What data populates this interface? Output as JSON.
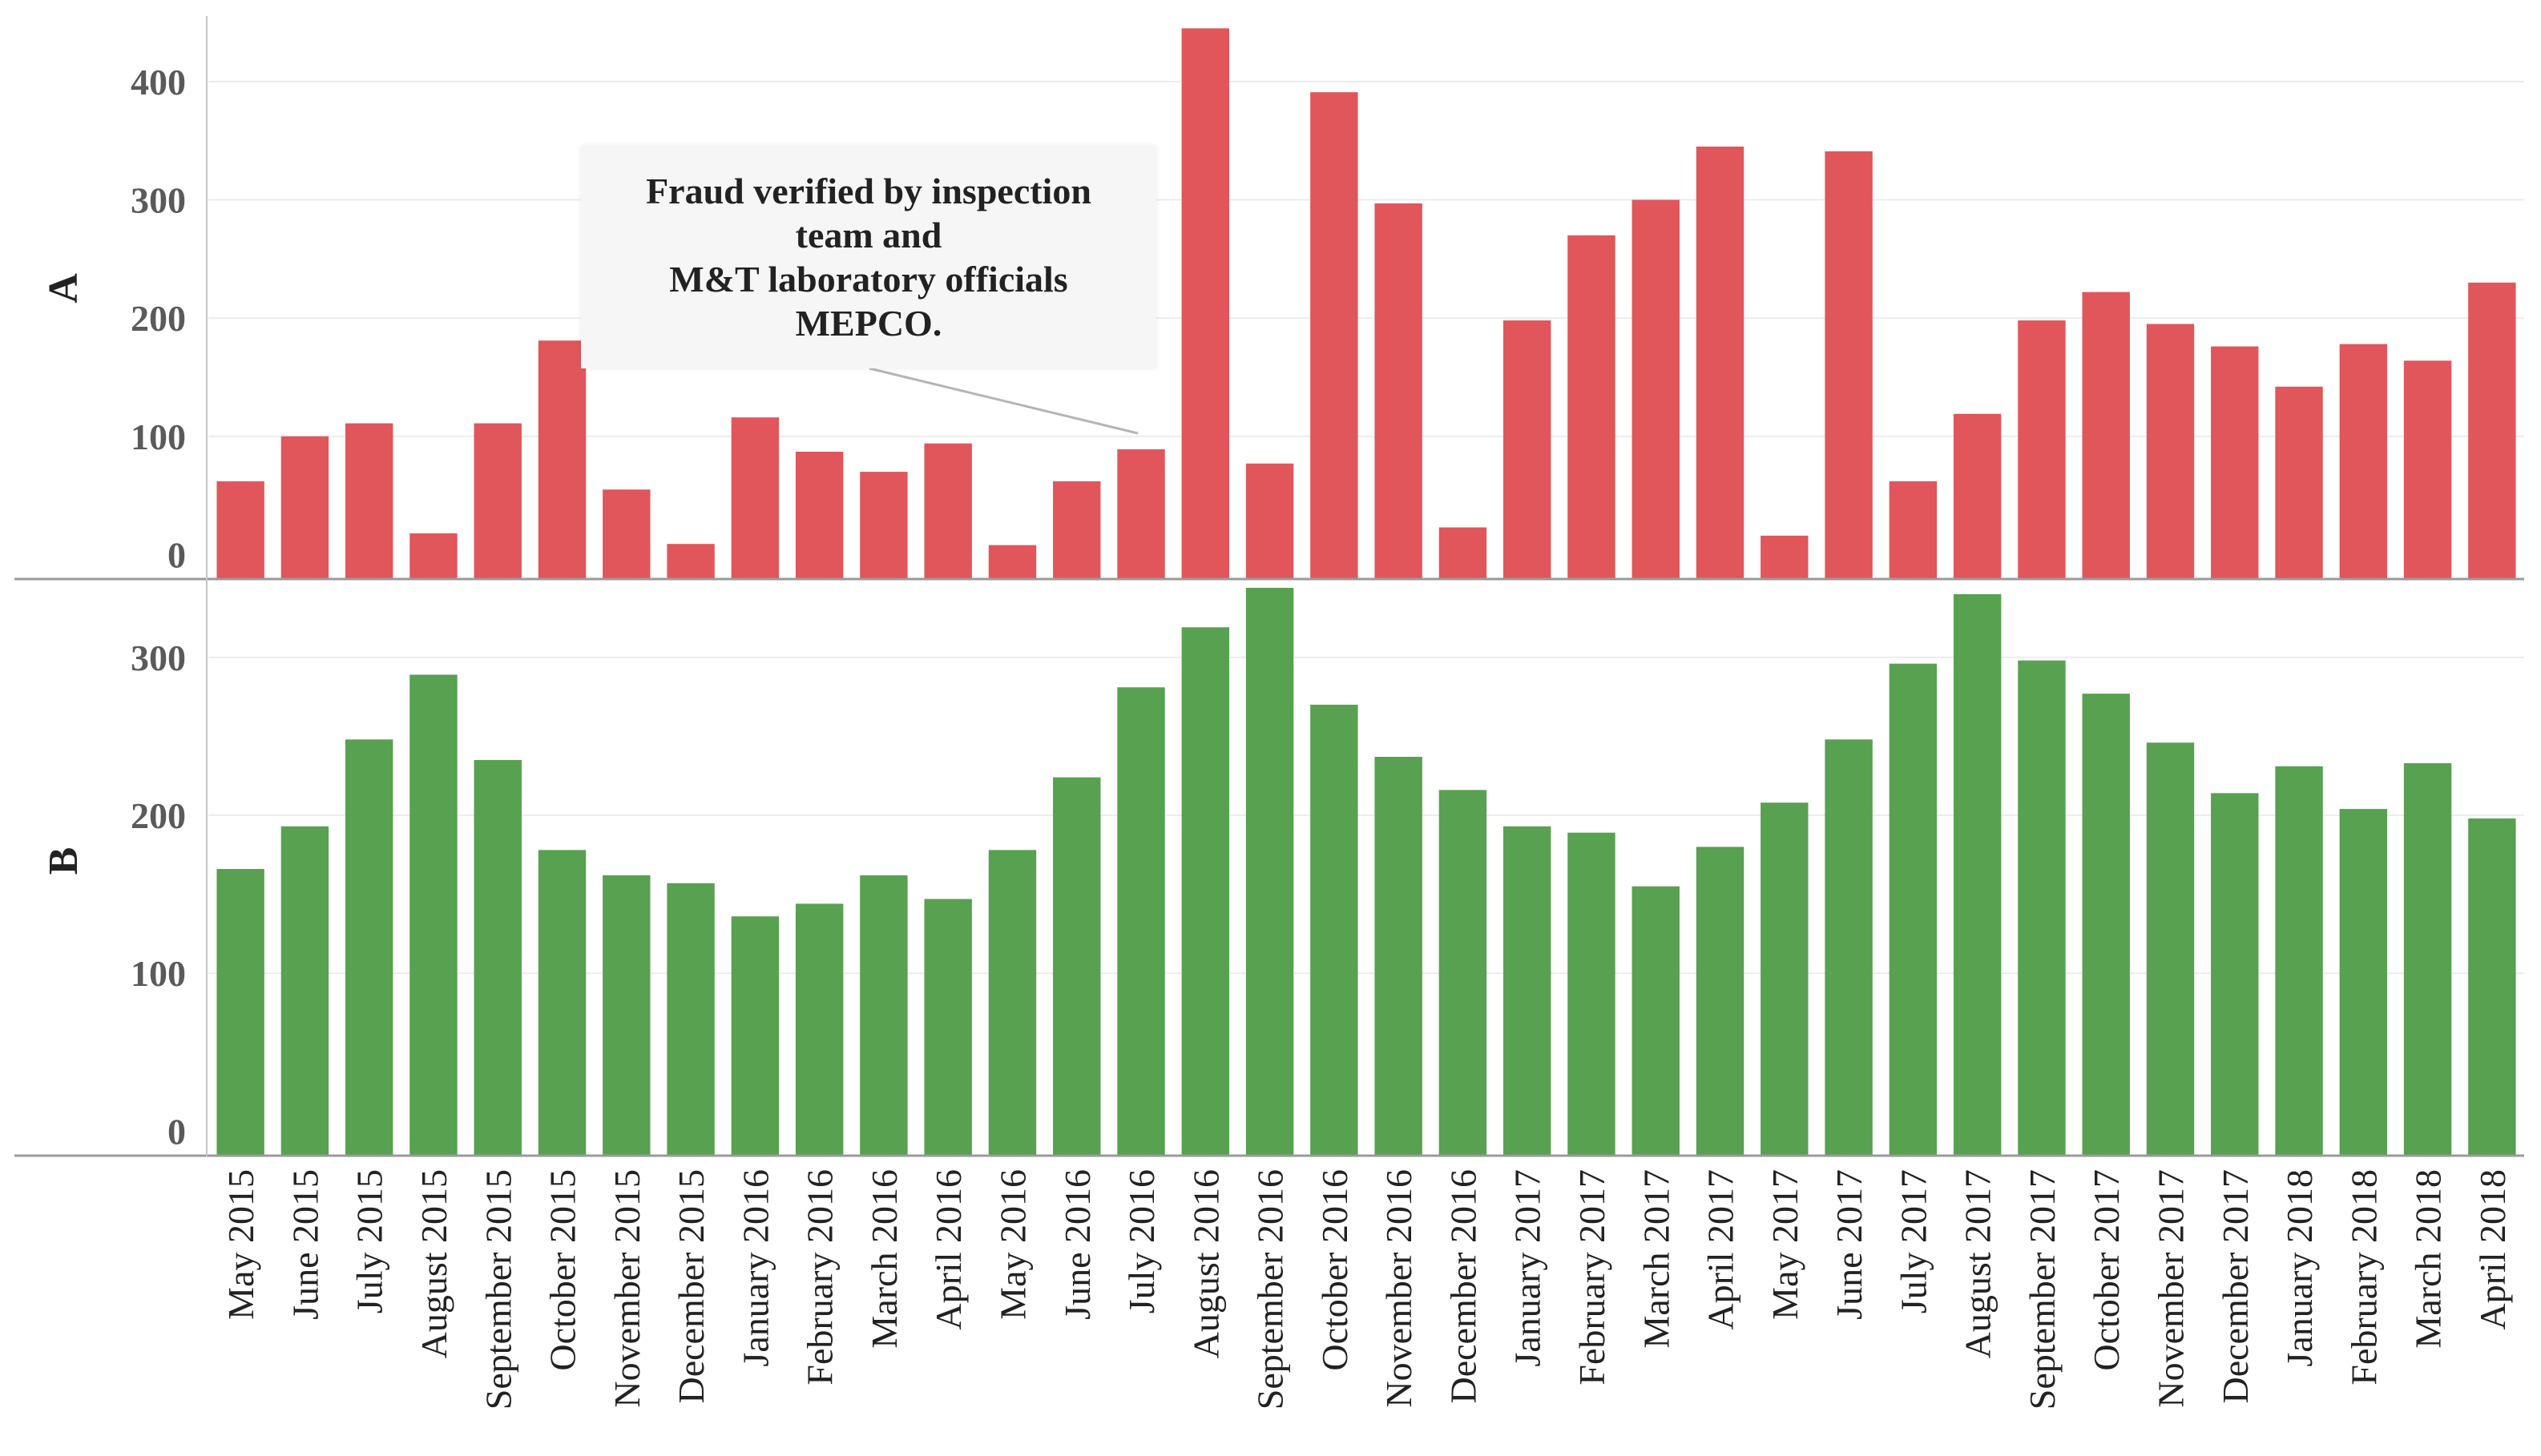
{
  "chart_data": {
    "type": "bar",
    "categories": [
      "May 2015",
      "June 2015",
      "July 2015",
      "August 2015",
      "September 2015",
      "October 2015",
      "November 2015",
      "December 2015",
      "January 2016",
      "February 2016",
      "March 2016",
      "April 2016",
      "May 2016",
      "June 2016",
      "July 2016",
      "August 2016",
      "September 2016",
      "October 2016",
      "November 2016",
      "December 2016",
      "January 2017",
      "February 2017",
      "March 2017",
      "April 2017",
      "May 2017",
      "June 2017",
      "July 2017",
      "August 2017",
      "September 2017",
      "October 2017",
      "November 2017",
      "December 2017",
      "January 2018",
      "February 2018",
      "March 2018",
      "April 2018"
    ],
    "panels": [
      {
        "label": "A",
        "color": "#e0565b",
        "ylim": [
          -20,
          450
        ],
        "yticks": [
          0,
          100,
          200,
          300,
          400
        ],
        "values": [
          62,
          100,
          111,
          18,
          111,
          181,
          55,
          9,
          116,
          87,
          70,
          94,
          8,
          62,
          89,
          445,
          77,
          391,
          297,
          23,
          198,
          270,
          300,
          345,
          16,
          341,
          62,
          119,
          198,
          222,
          195,
          176,
          142,
          178,
          164,
          230
        ]
      },
      {
        "label": "B",
        "color": "#57a150",
        "ylim": [
          -15,
          345
        ],
        "yticks": [
          0,
          100,
          200,
          300
        ],
        "values": [
          166,
          193,
          248,
          289,
          235,
          178,
          162,
          157,
          136,
          144,
          162,
          147,
          178,
          224,
          281,
          319,
          344,
          270,
          237,
          216,
          193,
          189,
          155,
          180,
          208,
          248,
          296,
          340,
          298,
          277,
          246,
          214,
          231,
          204,
          233,
          198
        ]
      }
    ],
    "annotation": {
      "lines": [
        "Fraud verified by inspection",
        "team and",
        "M&T laboratory officials",
        "MEPCO."
      ],
      "target": "July 2016"
    }
  }
}
